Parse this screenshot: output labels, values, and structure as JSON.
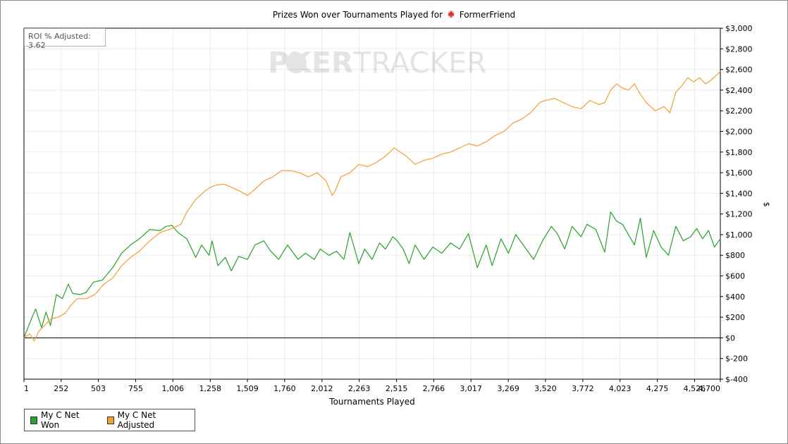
{
  "title_prefix": "Prizes Won over Tournaments Played for",
  "player_name": "FormerFriend",
  "roi_label": "ROI % Adjusted: 3.62",
  "watermark": {
    "part1": "P",
    "part2": "KER",
    "part3": "TRACKER"
  },
  "colors": {
    "won": "#2aa02a",
    "adjusted": "#f2a033",
    "grid": "#ebebeb",
    "zero": "#000000"
  },
  "chart_data": {
    "type": "line",
    "title": "Prizes Won over Tournaments Played for FormerFriend",
    "xlabel": "Tournaments Played",
    "ylabel": "$",
    "xlim": [
      1,
      4700
    ],
    "ylim": [
      -400,
      3000
    ],
    "x_ticks": [
      1,
      252,
      503,
      755,
      1006,
      1258,
      1509,
      1760,
      2012,
      2263,
      2515,
      2766,
      3017,
      3269,
      3520,
      3772,
      4023,
      4275,
      4526,
      4700
    ],
    "x_tick_labels": [
      "1",
      "252",
      "503",
      "755",
      "1,006",
      "1,258",
      "1,509",
      "1,760",
      "2,012",
      "2,263",
      "2,515",
      "2,766",
      "3,017",
      "3,269",
      "3,520",
      "3,772",
      "4,023",
      "4,275",
      "4,526",
      "4,700"
    ],
    "y_ticks": [
      -400,
      -200,
      0,
      200,
      400,
      600,
      800,
      1000,
      1200,
      1400,
      1600,
      1800,
      2000,
      2200,
      2400,
      2600,
      2800,
      3000
    ],
    "y_tick_labels": [
      "$-400",
      "$-200",
      "$0",
      "$200",
      "$400",
      "$600",
      "$800",
      "$1,000",
      "$1,200",
      "$1,400",
      "$1,600",
      "$1,800",
      "$2,000",
      "$2,200",
      "$2,400",
      "$2,600",
      "$2,800",
      "$3,000"
    ],
    "grid": true,
    "legend_position": "bottom-left",
    "series": [
      {
        "name": "My C Net Won",
        "color": "#2aa02a",
        "x": [
          1,
          50,
          80,
          120,
          150,
          180,
          220,
          260,
          300,
          330,
          380,
          420,
          470,
          530,
          600,
          660,
          720,
          780,
          850,
          920,
          960,
          1000,
          1040,
          1100,
          1160,
          1200,
          1250,
          1270,
          1310,
          1360,
          1400,
          1450,
          1509,
          1560,
          1620,
          1660,
          1720,
          1780,
          1850,
          1900,
          1960,
          2000,
          2060,
          2110,
          2160,
          2200,
          2260,
          2300,
          2350,
          2400,
          2440,
          2490,
          2520,
          2560,
          2600,
          2640,
          2700,
          2760,
          2820,
          2880,
          2940,
          3000,
          3060,
          3120,
          3160,
          3220,
          3270,
          3320,
          3380,
          3440,
          3500,
          3560,
          3600,
          3650,
          3700,
          3760,
          3800,
          3860,
          3920,
          3960,
          4000,
          4040,
          4080,
          4120,
          4160,
          4200,
          4250,
          4300,
          4350,
          4400,
          4450,
          4500,
          4540,
          4580,
          4620,
          4660,
          4700
        ],
        "values": [
          0,
          180,
          280,
          100,
          250,
          120,
          420,
          380,
          520,
          430,
          420,
          440,
          540,
          560,
          680,
          820,
          900,
          960,
          1050,
          1040,
          1080,
          1090,
          1020,
          960,
          780,
          900,
          800,
          940,
          700,
          780,
          650,
          790,
          760,
          900,
          940,
          850,
          760,
          900,
          760,
          820,
          760,
          860,
          800,
          840,
          760,
          1020,
          720,
          860,
          760,
          920,
          860,
          980,
          940,
          860,
          720,
          900,
          760,
          880,
          820,
          920,
          860,
          1010,
          680,
          900,
          700,
          960,
          820,
          1000,
          880,
          760,
          940,
          1080,
          1010,
          860,
          1080,
          980,
          1100,
          1050,
          830,
          1220,
          1130,
          1100,
          1000,
          900,
          1160,
          780,
          1040,
          880,
          800,
          1080,
          940,
          980,
          1060,
          960,
          1040,
          880,
          960
        ]
      },
      {
        "name": "My C Net Adjusted",
        "color": "#f2a033",
        "x": [
          1,
          40,
          70,
          100,
          140,
          180,
          230,
          280,
          320,
          360,
          420,
          480,
          540,
          600,
          660,
          720,
          780,
          850,
          920,
          1000,
          1060,
          1100,
          1160,
          1220,
          1260,
          1300,
          1350,
          1400,
          1460,
          1509,
          1560,
          1620,
          1680,
          1740,
          1800,
          1860,
          1920,
          1980,
          2040,
          2080,
          2100,
          2140,
          2200,
          2260,
          2320,
          2380,
          2440,
          2500,
          2540,
          2580,
          2640,
          2700,
          2760,
          2820,
          2880,
          2940,
          3000,
          3060,
          3120,
          3180,
          3240,
          3300,
          3360,
          3420,
          3480,
          3520,
          3580,
          3640,
          3700,
          3760,
          3820,
          3880,
          3920,
          3960,
          4000,
          4040,
          4080,
          4120,
          4160,
          4200,
          4260,
          4320,
          4360,
          4400,
          4440,
          4480,
          4520,
          4560,
          4600,
          4640,
          4700
        ],
        "values": [
          0,
          40,
          -30,
          60,
          120,
          180,
          200,
          240,
          320,
          380,
          380,
          420,
          520,
          580,
          700,
          780,
          840,
          940,
          1020,
          1060,
          1100,
          1220,
          1340,
          1420,
          1460,
          1480,
          1490,
          1460,
          1420,
          1380,
          1440,
          1520,
          1560,
          1620,
          1620,
          1600,
          1560,
          1600,
          1520,
          1380,
          1420,
          1560,
          1600,
          1680,
          1660,
          1700,
          1760,
          1840,
          1800,
          1760,
          1680,
          1720,
          1740,
          1780,
          1800,
          1840,
          1880,
          1860,
          1900,
          1960,
          2000,
          2080,
          2120,
          2180,
          2280,
          2300,
          2320,
          2280,
          2240,
          2220,
          2300,
          2260,
          2280,
          2400,
          2460,
          2420,
          2400,
          2460,
          2360,
          2280,
          2200,
          2240,
          2180,
          2380,
          2440,
          2520,
          2480,
          2520,
          2460,
          2500,
          2580
        ]
      }
    ]
  }
}
